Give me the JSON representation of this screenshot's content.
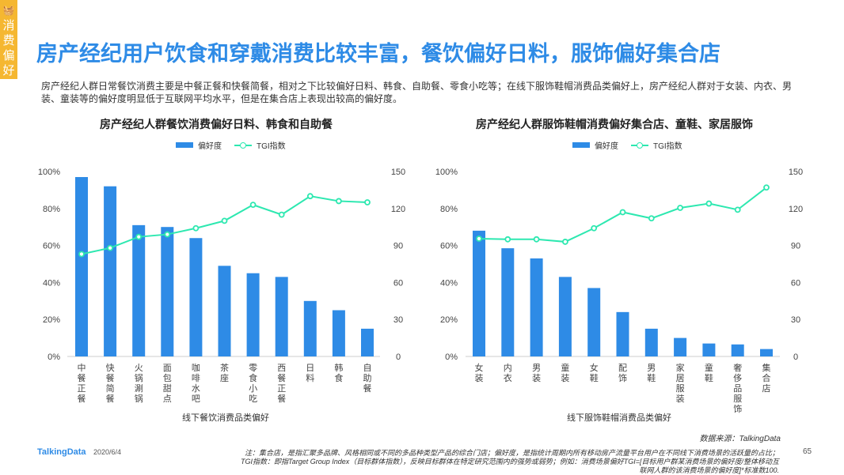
{
  "badge": {
    "icon": "basket-icon",
    "text": "消费偏好",
    "color": "#f5b731"
  },
  "title": "房产经纪用户饮食和穿戴消费比较丰富，餐饮偏好日料，服饰偏好集合店",
  "description": "房产经纪人群日常餐饮消费主要是中餐正餐和快餐简餐，相对之下比较偏好日料、韩食、自助餐、零食小吃等；在线下服饰鞋帽消费品类偏好上，房产经纪人群对于女装、内衣、男装、童装等的偏好度明显低于互联网平均水平，但是在集合店上表现出较高的偏好度。",
  "colors": {
    "bar": "#2e8be6",
    "line": "#2de8b0",
    "title": "#2e8be6"
  },
  "chart_data": [
    {
      "type": "bar+line",
      "title": "房产经纪人群餐饮消费偏好日料、韩食和自助餐",
      "xlabel": "线下餐饮消费品类偏好",
      "legend": [
        "偏好度",
        "TGI指数"
      ],
      "legend_position": "top",
      "categories": [
        "中餐正餐",
        "快餐简餐",
        "火锅涮锅",
        "面包甜点",
        "咖啡水吧",
        "茶座",
        "零食小吃",
        "西餐正餐",
        "日料",
        "韩食",
        "自助餐"
      ],
      "series": [
        {
          "name": "偏好度",
          "type": "bar",
          "axis": "left",
          "values": [
            97,
            92,
            71,
            70,
            64,
            49,
            45,
            43,
            30,
            25,
            15
          ]
        },
        {
          "name": "TGI指数",
          "type": "line",
          "axis": "right",
          "values": [
            83,
            88,
            97,
            99,
            104,
            110,
            123,
            115,
            130,
            126,
            125
          ]
        }
      ],
      "ylim_left": [
        0,
        100
      ],
      "yticks_left": [
        "0%",
        "20%",
        "40%",
        "60%",
        "80%",
        "100%"
      ],
      "ylim_right": [
        0,
        150
      ],
      "yticks_right": [
        "0",
        "30",
        "60",
        "90",
        "120",
        "150"
      ],
      "grid": false
    },
    {
      "type": "bar+line",
      "title": "房产经纪人群服饰鞋帽消费偏好集合店、童鞋、家居服饰",
      "xlabel": "线下服饰鞋帽消费品类偏好",
      "legend": [
        "偏好度",
        "TGI指数"
      ],
      "legend_position": "top",
      "categories": [
        "女装",
        "内衣",
        "男装",
        "童装",
        "女鞋",
        "配饰",
        "男鞋",
        "家居服装",
        "童鞋",
        "奢侈品服饰",
        "集合店"
      ],
      "series": [
        {
          "name": "偏好度",
          "type": "bar",
          "axis": "left",
          "values": [
            68,
            58.5,
            53,
            43,
            37,
            24,
            15,
            10,
            7,
            6.5,
            4
          ]
        },
        {
          "name": "TGI指数",
          "type": "line",
          "axis": "right",
          "values": [
            95.5,
            95,
            95,
            93,
            104,
            117,
            112,
            120.5,
            124,
            119,
            137
          ]
        }
      ],
      "ylim_left": [
        0,
        100
      ],
      "yticks_left": [
        "0%",
        "20%",
        "40%",
        "60%",
        "80%",
        "100%"
      ],
      "ylim_right": [
        0,
        150
      ],
      "yticks_right": [
        "0",
        "30",
        "60",
        "90",
        "120",
        "150"
      ],
      "grid": false
    }
  ],
  "footer": {
    "source": "数据来源：TalkingData",
    "logo": "TalkingData",
    "date": "2020/6/4",
    "note": "注：集合店，是指汇聚多品牌、风格相同或不同的多品种类型产品的综合门店；偏好度，是指统计周期内所有移动房产流量平台用户在不同线下消费场景的活跃量的占比；TGI指数：即指Target Group Index（目标群体指数），反映目标群体在特定研究范围内的强势或弱势；例如：消费场景偏好TGI=[目标用户群某消费场景的偏好度/整体移动互联网人群的该消费场景的偏好度]*标准数100.",
    "page": "65"
  }
}
